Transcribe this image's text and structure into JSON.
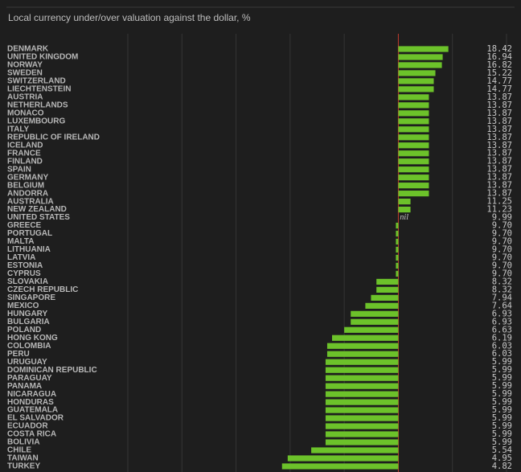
{
  "chart_data": {
    "type": "barh",
    "title": "Local currency under/over valuation against the dollar, %",
    "categories": [
      "DENMARK",
      "UNITED KINGDOM",
      "NORWAY",
      "SWEDEN",
      "SWITZERLAND",
      "LIECHTENSTEIN",
      "AUSTRIA",
      "NETHERLANDS",
      "MONACO",
      "LUXEMBOURG",
      "ITALY",
      "REPUBLIC OF IRELAND",
      "ICELAND",
      "FRANCE",
      "FINLAND",
      "SPAIN",
      "GERMANY",
      "BELGIUM",
      "ANDORRA",
      "AUSTRALIA",
      "NEW ZEALAND",
      "UNITED STATES",
      "GREECE",
      "PORTUGAL",
      "MALTA",
      "LITHUANIA",
      "LATVIA",
      "ESTONIA",
      "CYPRUS",
      "SLOVAKIA",
      "CZECH REPUBLIC",
      "SINGAPORE",
      "MEXICO",
      "HUNGARY",
      "BULGARIA",
      "POLAND",
      "HONG KONG",
      "COLOMBIA",
      "PERU",
      "URUGUAY",
      "DOMINICAN REPUBLIC",
      "PARAGUAY",
      "PANAMA",
      "NICARAGUA",
      "HONDURAS",
      "GUATEMALA",
      "EL SALVADOR",
      "ECUADOR",
      "COSTA RICA",
      "BOLIVIA",
      "CHILE",
      "TAIWAN",
      "TURKEY"
    ],
    "values": [
      18.5,
      16.4,
      16.1,
      13.7,
      13.1,
      13.1,
      11.3,
      11.3,
      11.3,
      11.3,
      11.3,
      11.3,
      11.3,
      11.3,
      11.3,
      11.3,
      11.3,
      11.3,
      11.3,
      4.5,
      4.5,
      0,
      -0.9,
      -0.9,
      -0.9,
      -0.9,
      -0.9,
      -0.9,
      -0.9,
      -8.1,
      -8.1,
      -10.1,
      -12.2,
      -17.6,
      -17.6,
      -20,
      -24.5,
      -26.3,
      -26.3,
      -26.9,
      -26.9,
      -26.9,
      -26.9,
      -26.9,
      -26.9,
      -26.9,
      -26.9,
      -26.9,
      -26.9,
      -26.9,
      -32.2,
      -40.9,
      -43
    ],
    "value_labels": [
      null,
      null,
      null,
      null,
      null,
      null,
      null,
      null,
      null,
      null,
      null,
      null,
      null,
      null,
      null,
      null,
      null,
      null,
      null,
      null,
      null,
      "nil",
      null,
      null,
      null,
      null,
      null,
      null,
      null,
      null,
      null,
      null,
      null,
      null,
      null,
      null,
      null,
      null,
      null,
      null,
      null,
      null,
      null,
      null,
      null,
      null,
      null,
      null,
      null,
      null,
      null,
      null,
      null
    ],
    "prices": [
      "18.42",
      "16.94",
      "16.82",
      "15.22",
      "14.77",
      "14.77",
      "13.87",
      "13.87",
      "13.87",
      "13.87",
      "13.87",
      "13.87",
      "13.87",
      "13.87",
      "13.87",
      "13.87",
      "13.87",
      "13.87",
      "13.87",
      "11.25",
      "11.23",
      "9.99",
      "9.70",
      "9.70",
      "9.70",
      "9.70",
      "9.70",
      "9.70",
      "9.70",
      "8.32",
      "8.32",
      "7.94",
      "7.64",
      "6.93",
      "6.93",
      "6.63",
      "6.19",
      "6.03",
      "6.03",
      "5.99",
      "5.99",
      "5.99",
      "5.99",
      "5.99",
      "5.99",
      "5.99",
      "5.99",
      "5.99",
      "5.99",
      "5.99",
      "5.54",
      "4.95",
      "4.82"
    ],
    "color": "#6cc22a",
    "zero_color": "#c0392b",
    "xlim": [
      -100,
      40
    ],
    "xticks": [
      -100,
      -80,
      -60,
      -40,
      -20,
      0,
      20,
      40
    ],
    "grid": true
  }
}
